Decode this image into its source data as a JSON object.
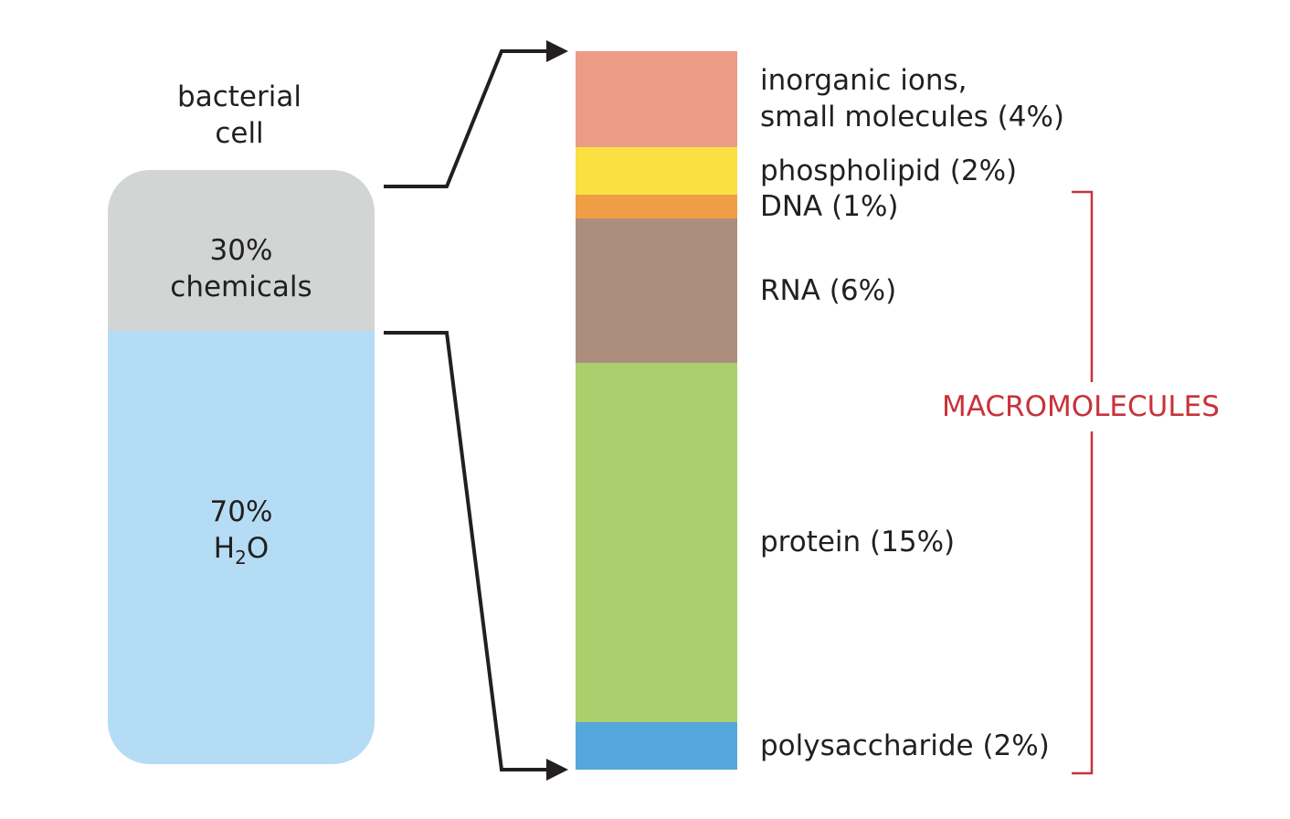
{
  "cell": {
    "title_line1": "bacterial",
    "title_line2": "cell",
    "chemicals": {
      "percent": "30%",
      "label": "chemicals",
      "fraction": 0.3,
      "color": "#d1d5d3"
    },
    "water": {
      "percent": "70%",
      "label_prefix": "H",
      "label_subscript": "2",
      "label_suffix": "O",
      "fraction": 0.7,
      "color": "#b5dcf5"
    }
  },
  "components": [
    {
      "line1": "inorganic ions,",
      "line2": "small molecules (4%)",
      "percent": 4,
      "color": "#ec9b87"
    },
    {
      "line1": "phospholipid (2%)",
      "percent": 2,
      "color": "#fbe042"
    },
    {
      "line1": "DNA (1%)",
      "percent": 1,
      "color": "#ef9e45"
    },
    {
      "line1": "RNA (6%)",
      "percent": 6,
      "color": "#ad8e7e"
    },
    {
      "line1": "protein (15%)",
      "percent": 15,
      "color": "#aacf6c"
    },
    {
      "line1": "polysaccharide (2%)",
      "percent": 2,
      "color": "#55a8db"
    }
  ],
  "macromolecules": {
    "label": "MACROMOLECULES",
    "color": "#c8323b"
  },
  "colors": {
    "connector": "#231f20"
  }
}
